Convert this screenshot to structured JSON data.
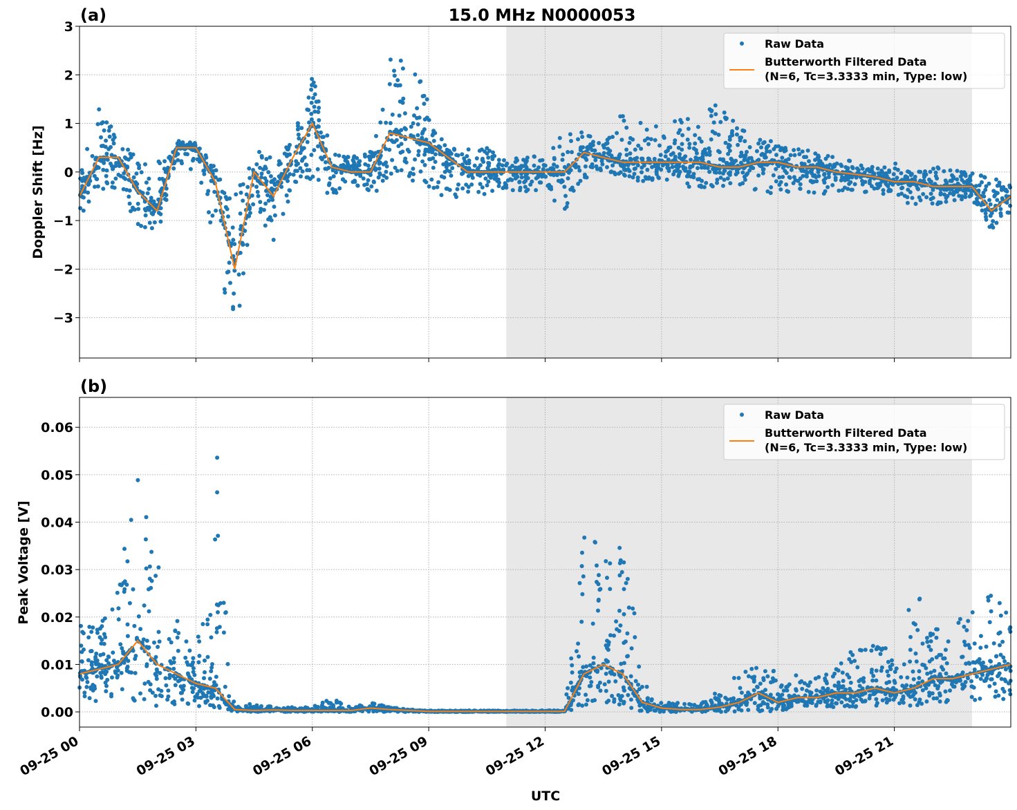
{
  "chart_data": [
    {
      "type": "scatter+line",
      "panel_label": "(a)",
      "title": "15.0 MHz N0000053",
      "xlabel": "",
      "ylabel": "Doppler Shift [Hz]",
      "ylim": [
        -3.83,
        3.0
      ],
      "yticks": [
        3,
        2,
        1,
        0,
        -1,
        -2,
        -3
      ],
      "ytick_labels": [
        "3",
        "2",
        "1",
        "0",
        "−1",
        "−2",
        "−3"
      ],
      "xlim_hours": [
        0,
        24
      ],
      "grid": true,
      "shaded_interval_hours": [
        11.0,
        23.0
      ],
      "legend_placement": "top-right",
      "legend": [
        "Raw Data",
        "Butterworth Filtered Data",
        "(N=6, Tc=3.3333 min, Type: low)"
      ],
      "t_hours": [
        0,
        0.5,
        1,
        1.5,
        2,
        2.5,
        3,
        3.5,
        4,
        4.5,
        5,
        5.5,
        6,
        6.5,
        7,
        7.5,
        8,
        8.5,
        9,
        9.5,
        10,
        10.5,
        11,
        11.5,
        12,
        12.5,
        13,
        13.5,
        14,
        14.5,
        15,
        15.5,
        16,
        16.5,
        17,
        17.5,
        18,
        18.5,
        19,
        19.5,
        20,
        20.5,
        21,
        21.5,
        22,
        22.5,
        23,
        23.5,
        24
      ],
      "series": [
        {
          "name": "Butterworth Filtered Data",
          "values": [
            -0.5,
            0.3,
            0.3,
            -0.4,
            -0.8,
            0.5,
            0.5,
            -0.2,
            -2.0,
            0.0,
            -0.5,
            0.3,
            1.0,
            0.1,
            0.0,
            0.0,
            0.8,
            0.7,
            0.6,
            0.3,
            0.0,
            0.0,
            0.0,
            0.0,
            0.0,
            0.0,
            0.4,
            0.3,
            0.2,
            0.2,
            0.2,
            0.2,
            0.2,
            0.1,
            0.1,
            0.2,
            0.2,
            0.1,
            0.1,
            0.0,
            -0.05,
            -0.1,
            -0.2,
            -0.2,
            -0.3,
            -0.3,
            -0.3,
            -0.8,
            -0.5
          ]
        },
        {
          "name": "Raw Data",
          "low": [
            -0.9,
            -0.5,
            -0.3,
            -1.2,
            -1.3,
            0.2,
            0.0,
            -1.5,
            -3.5,
            -0.6,
            -1.7,
            -0.3,
            -0.2,
            -0.5,
            -0.3,
            -0.4,
            -0.4,
            -0.2,
            -0.3,
            -0.6,
            -0.5,
            -0.5,
            -0.4,
            -0.4,
            -0.4,
            -0.8,
            -0.2,
            0.0,
            -0.1,
            -0.2,
            -0.2,
            -0.3,
            -0.4,
            -0.3,
            -0.3,
            -0.4,
            -0.5,
            -0.4,
            -0.5,
            -0.4,
            -0.4,
            -0.5,
            -0.5,
            -0.7,
            -0.7,
            -0.6,
            -0.6,
            -1.2,
            -0.8
          ],
          "high": [
            0.3,
            1.5,
            0.6,
            0.4,
            0.2,
            0.65,
            0.6,
            0.1,
            -0.5,
            0.5,
            0.3,
            0.7,
            2.0,
            0.4,
            0.3,
            0.5,
            2.4,
            2.5,
            1.4,
            0.5,
            0.5,
            0.5,
            0.3,
            0.3,
            0.5,
            1.1,
            0.8,
            0.6,
            1.3,
            1.0,
            1.0,
            1.1,
            1.1,
            1.6,
            0.9,
            0.7,
            0.6,
            0.5,
            0.4,
            0.3,
            0.2,
            0.1,
            0.2,
            0.1,
            0.1,
            0.1,
            0.0,
            -0.1,
            -0.2
          ]
        }
      ]
    },
    {
      "type": "scatter+line",
      "panel_label": "(b)",
      "xlabel": "UTC",
      "ylabel": "Peak Voltage [V]",
      "ylim": [
        -0.0032,
        0.0663
      ],
      "yticks": [
        0.06,
        0.05,
        0.04,
        0.03,
        0.02,
        0.01,
        0.0
      ],
      "ytick_labels": [
        "0.06",
        "0.05",
        "0.04",
        "0.03",
        "0.02",
        "0.01",
        "0.00"
      ],
      "xlim_hours": [
        0,
        24
      ],
      "xtick_labels": [
        "09-25 00",
        "09-25 03",
        "09-25 06",
        "09-25 09",
        "09-25 12",
        "09-25 15",
        "09-25 18",
        "09-25 21"
      ],
      "grid": true,
      "shaded_interval_hours": [
        11.0,
        23.0
      ],
      "legend_placement": "top-right",
      "legend": [
        "Raw Data",
        "Butterworth Filtered Data",
        "(N=6, Tc=3.3333 min, Type: low)"
      ],
      "t_hours": [
        0,
        0.5,
        1,
        1.5,
        2,
        2.5,
        3,
        3.5,
        4,
        4.5,
        5,
        5.5,
        6,
        6.5,
        7,
        7.5,
        8,
        8.5,
        9,
        9.5,
        10,
        10.5,
        11,
        11.5,
        12,
        12.5,
        13,
        13.5,
        14,
        14.5,
        15,
        15.5,
        16,
        16.5,
        17,
        17.5,
        18,
        18.5,
        19,
        19.5,
        20,
        20.5,
        21,
        21.5,
        22,
        22.5,
        23,
        23.5,
        24
      ],
      "series": [
        {
          "name": "Butterworth Filtered Data",
          "values": [
            0.008,
            0.009,
            0.01,
            0.015,
            0.01,
            0.008,
            0.006,
            0.005,
            0.0005,
            0.0003,
            0.0004,
            0.0003,
            0.0003,
            0.0003,
            0.0003,
            0.0008,
            0.0005,
            0.0003,
            0.0001,
            0.0001,
            0.0001,
            0.0001,
            0.0001,
            0.0001,
            0.0001,
            0.0001,
            0.008,
            0.01,
            0.008,
            0.002,
            0.0008,
            0.0005,
            0.0005,
            0.001,
            0.002,
            0.004,
            0.002,
            0.003,
            0.003,
            0.004,
            0.004,
            0.005,
            0.004,
            0.005,
            0.007,
            0.007,
            0.008,
            0.009,
            0.01
          ]
        },
        {
          "name": "Raw Data",
          "low": [
            0.002,
            0.002,
            0.003,
            0.002,
            0.001,
            0.001,
            0.001,
            0.001,
            0,
            0,
            0,
            0,
            0,
            0,
            0,
            0,
            0,
            0,
            0,
            0,
            0,
            0,
            0,
            0,
            0,
            0,
            0.001,
            0.002,
            0.001,
            0,
            0,
            0,
            0,
            0,
            0,
            0,
            0,
            0.001,
            0.001,
            0.001,
            0.001,
            0.001,
            0.001,
            0.001,
            0.002,
            0.002,
            0.002,
            0.002,
            0.002
          ],
          "high": [
            0.022,
            0.017,
            0.035,
            0.049,
            0.034,
            0.023,
            0.01,
            0.063,
            0.001,
            0.002,
            0.001,
            0.001,
            0.001,
            0.003,
            0.001,
            0.002,
            0.001,
            0.0005,
            0.0003,
            0.0003,
            0.0003,
            0.0003,
            0.0003,
            0.0003,
            0.0003,
            0.0003,
            0.042,
            0.032,
            0.04,
            0.008,
            0.002,
            0.002,
            0.002,
            0.005,
            0.008,
            0.012,
            0.008,
            0.008,
            0.008,
            0.009,
            0.016,
            0.014,
            0.013,
            0.025,
            0.024,
            0.019,
            0.021,
            0.026,
            0.021
          ]
        }
      ]
    }
  ],
  "colors": {
    "raw": "#1f77b4",
    "filtered": "#ff7f0e",
    "shade": "#e8e8e8"
  }
}
